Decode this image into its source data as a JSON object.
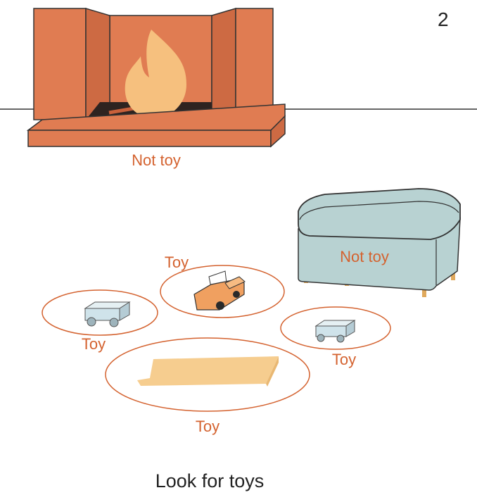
{
  "page_number": "2",
  "caption": "Look for toys",
  "fireplace": {
    "label": "Not toy"
  },
  "ottoman": {
    "label": "Not toy"
  },
  "toys": {
    "truck": {
      "label": "Toy"
    },
    "left_cart": {
      "label": "Toy"
    },
    "right_cart": {
      "label": "Toy"
    },
    "board": {
      "label": "Toy"
    }
  },
  "colors": {
    "brick": "#e07c52",
    "fire": "#f6c07e",
    "ottoman": "#b8d2d2",
    "label": "#d4622f",
    "truck": "#f0a060",
    "cart": "#cfe3ea",
    "board": "#f6cd8f"
  }
}
